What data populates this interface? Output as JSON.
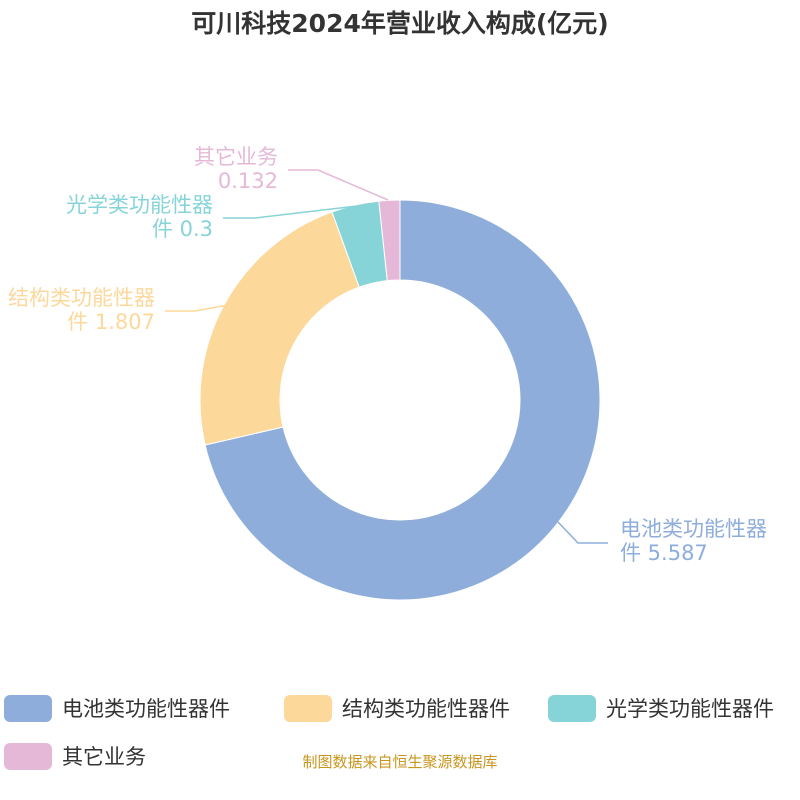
{
  "chart_data": {
    "type": "pie",
    "subtype": "donut",
    "title": "可川科技2024年营业收入构成(亿元)",
    "categories": [
      "电池类功能性器件",
      "结构类功能性器件",
      "光学类功能性器件",
      "其它业务"
    ],
    "values": [
      5.587,
      1.807,
      0.3,
      0.132
    ],
    "colors": [
      "#8eaddb",
      "#fdd89b",
      "#87d4d8",
      "#e6b8d8"
    ],
    "labels": [
      {
        "line1": "电池类功能性器",
        "line2": "件 5.587"
      },
      {
        "line1": "结构类功能性器",
        "line2": "件 1.807"
      },
      {
        "line1": "光学类功能性器",
        "line2": "件 0.3"
      },
      {
        "line1": "其它业务",
        "line2": "0.132"
      }
    ],
    "legend_position": "bottom"
  },
  "footer": "制图数据来自恒生聚源数据库"
}
